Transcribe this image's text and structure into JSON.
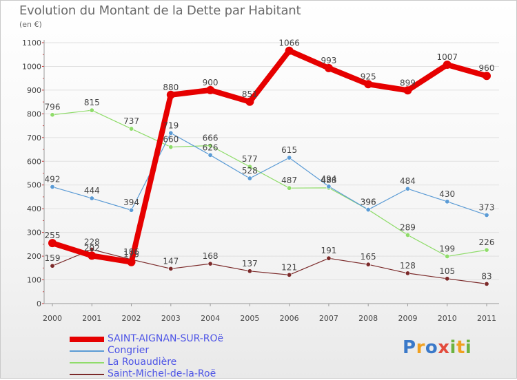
{
  "header": {
    "title": "Evolution du Montant de la Dette par Habitant",
    "subtitle": "(en €)"
  },
  "brand": {
    "letters": [
      "P",
      "r",
      "o",
      "x",
      "i",
      "t",
      "i"
    ],
    "text": "Proxiti"
  },
  "colors": {
    "saint_aignan": "#e60000",
    "congrier": "#5b9bd5",
    "rouaudiere": "#8fdc6a",
    "saint_michel": "#7b2a2a",
    "axis": "#999999",
    "grid": "#e0e0e0",
    "label_text": "#444444",
    "legend_text": "#4d54e6"
  },
  "chart_data": {
    "type": "line",
    "x": [
      "2000",
      "2001",
      "2002",
      "2003",
      "2004",
      "2005",
      "2006",
      "2007",
      "2008",
      "2009",
      "2010",
      "2011"
    ],
    "ylim": [
      0,
      1100
    ],
    "yticks": [
      0,
      100,
      200,
      300,
      400,
      500,
      600,
      700,
      800,
      900,
      1000,
      1100
    ],
    "grid": true,
    "legend_position": "bottom-left",
    "series": [
      {
        "name": "SAINT-AIGNAN-SUR-ROë",
        "color": "#e60000",
        "width": 8,
        "values": [
          255,
          202,
          175,
          880,
          900,
          851,
          1066,
          993,
          925,
          899,
          1007,
          960
        ]
      },
      {
        "name": "Congrier",
        "color": "#5b9bd5",
        "width": 1.2,
        "values": [
          492,
          444,
          394,
          719,
          626,
          528,
          615,
          494,
          396,
          484,
          430,
          373
        ]
      },
      {
        "name": "La Rouaudière",
        "color": "#8fdc6a",
        "width": 1.2,
        "values": [
          796,
          815,
          737,
          660,
          666,
          577,
          487,
          488,
          396,
          289,
          199,
          226
        ]
      },
      {
        "name": "Saint-Michel-de-la-Roë",
        "color": "#7b2a2a",
        "width": 1.2,
        "values": [
          159,
          228,
          186,
          147,
          168,
          137,
          121,
          191,
          165,
          128,
          105,
          83
        ]
      }
    ]
  }
}
